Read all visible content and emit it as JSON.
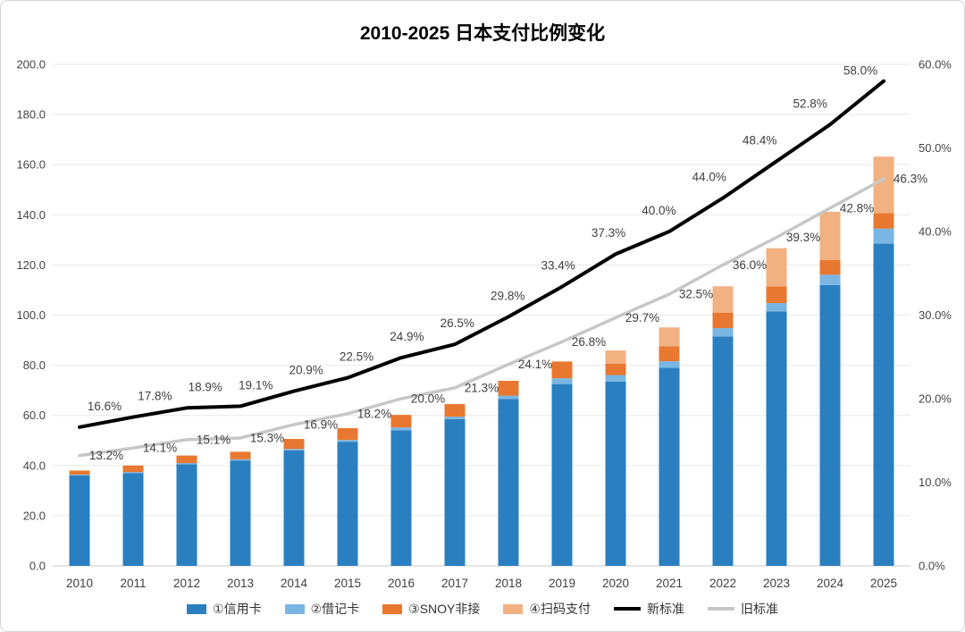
{
  "chart_data": {
    "type": "combo-stacked-bar-line",
    "title": "2010-2025 日本支付比例变化",
    "categories": [
      "2010",
      "2011",
      "2012",
      "2013",
      "2014",
      "2015",
      "2016",
      "2017",
      "2018",
      "2019",
      "2020",
      "2021",
      "2022",
      "2023",
      "2024",
      "2025"
    ],
    "bar_series": [
      {
        "name": "①信用卡",
        "color": "#2A7FC1",
        "values": [
          36.0,
          37.0,
          40.5,
          42.0,
          46.0,
          49.5,
          54.0,
          58.5,
          66.5,
          72.5,
          73.5,
          79.0,
          91.5,
          101.5,
          112.0,
          128.5
        ]
      },
      {
        "name": "②借记卡",
        "color": "#7AB6E3",
        "values": [
          0.4,
          0.4,
          0.5,
          0.5,
          0.6,
          0.7,
          1.2,
          1.0,
          1.4,
          2.3,
          2.6,
          2.6,
          3.3,
          3.3,
          4.1,
          6.0
        ]
      },
      {
        "name": "③SNOY非接",
        "color": "#E8782F",
        "values": [
          1.6,
          2.6,
          3.0,
          3.0,
          4.0,
          4.7,
          5.0,
          5.0,
          5.9,
          6.7,
          4.5,
          6.0,
          6.2,
          6.7,
          5.9,
          6.2
        ]
      },
      {
        "name": "④扫码支付",
        "color": "#F2B181",
        "values": [
          0,
          0,
          0,
          0,
          0,
          0,
          0,
          0,
          0,
          0,
          5.3,
          7.5,
          10.5,
          15.2,
          19.2,
          22.5
        ]
      }
    ],
    "line_series": [
      {
        "name": "新标准",
        "color": "#000000",
        "width": 4,
        "label_placement": "above-drift",
        "values": [
          16.6,
          17.8,
          18.9,
          19.1,
          20.9,
          22.5,
          24.9,
          26.5,
          29.8,
          33.4,
          37.3,
          40.0,
          44.0,
          48.4,
          52.8,
          58.0
        ]
      },
      {
        "name": "旧标准",
        "color": "#C7C7C7",
        "width": 3.5,
        "label_placement": "right-last-only",
        "values": [
          13.2,
          14.1,
          15.1,
          15.3,
          16.9,
          18.2,
          20.0,
          21.3,
          24.1,
          26.8,
          29.7,
          32.5,
          36.0,
          39.3,
          42.8,
          46.3
        ],
        "show_all_labels": true
      }
    ],
    "left_axis": {
      "min": 0,
      "max": 200,
      "step": 20,
      "tick_labels": [
        "0.0",
        "20.0",
        "40.0",
        "60.0",
        "80.0",
        "100.0",
        "120.0",
        "140.0",
        "160.0",
        "180.0",
        "200.0"
      ]
    },
    "right_axis": {
      "min": 0,
      "max": 60,
      "step": 10,
      "tick_labels": [
        "0.0%",
        "10.0%",
        "20.0%",
        "30.0%",
        "40.0%",
        "50.0%",
        "60.0%"
      ]
    },
    "grid": true,
    "legend_position": "bottom"
  }
}
